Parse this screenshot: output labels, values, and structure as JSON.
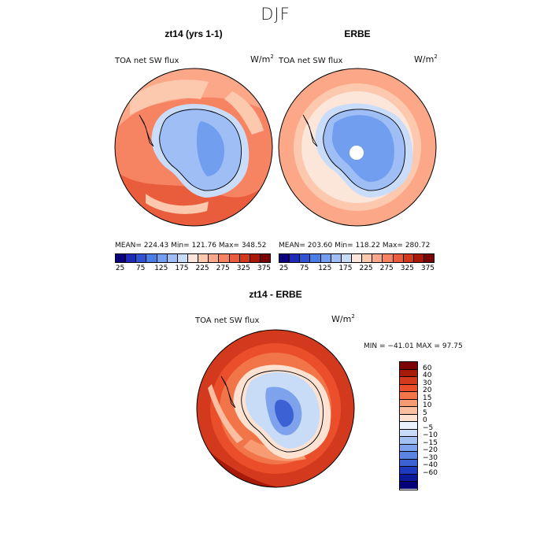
{
  "figure": {
    "title": "DJF"
  },
  "colors": {
    "abs_scale": [
      "#0a007f",
      "#1d2bb8",
      "#2f55d6",
      "#4b7de8",
      "#729ef0",
      "#9ebef5",
      "#c9dcfa",
      "#fce6d9",
      "#fcc9af",
      "#fba788",
      "#f68462",
      "#ea5d3c",
      "#d33a1d",
      "#a71a0a",
      "#7a0504"
    ],
    "diff_scale": [
      "#7a0504",
      "#a71a0a",
      "#d33a1d",
      "#ea4e2a",
      "#f27449",
      "#f79b73",
      "#fbbea0",
      "#fde2d2",
      "#eaf2fd",
      "#c8dcf7",
      "#a2c0f2",
      "#7ea2ec",
      "#5a83e2",
      "#3b61d5",
      "#1d39be",
      "#0a1a9a",
      "#05007a"
    ]
  },
  "chart_data": [
    {
      "type": "heatmap",
      "projection": "south-polar-stereographic",
      "title": "zt14 (yrs 1-1)",
      "variable": "TOA net SW flux",
      "units": "W/m",
      "units_exp": "2",
      "stats": {
        "mean": 224.43,
        "min": 121.76,
        "max": 348.52
      },
      "stats_labels": {
        "mean": "MEAN=",
        "min": "Min=",
        "max": "Max="
      },
      "colorbar": {
        "orientation": "horizontal",
        "levels": [
          25,
          75,
          125,
          175,
          225,
          275,
          325,
          375
        ]
      }
    },
    {
      "type": "heatmap",
      "projection": "south-polar-stereographic",
      "title": "ERBE",
      "variable": "TOA net SW flux",
      "units": "W/m",
      "units_exp": "2",
      "stats": {
        "mean": 203.6,
        "min": 118.22,
        "max": 280.72
      },
      "stats_labels": {
        "mean": "MEAN=",
        "min": "Min=",
        "max": "Max="
      },
      "colorbar": {
        "orientation": "horizontal",
        "levels": [
          25,
          75,
          125,
          175,
          225,
          275,
          325,
          375
        ]
      }
    },
    {
      "type": "heatmap",
      "projection": "south-polar-stereographic",
      "title": "zt14 - ERBE",
      "variable": "TOA net SW flux",
      "units": "W/m",
      "units_exp": "2",
      "stats_text": "MIN = −41.01 MAX =  97.75",
      "colorbar": {
        "orientation": "vertical",
        "levels": [
          "60",
          "40",
          "30",
          "20",
          "15",
          "10",
          "5",
          "0",
          "−5",
          "−10",
          "−15",
          "−20",
          "−30",
          "−40",
          "−60"
        ]
      }
    }
  ],
  "stats_text": {
    "left": "MEAN= 224.43   Min= 121.76   Max= 348.52",
    "right": "MEAN= 203.60   Min= 118.22   Max= 280.72"
  }
}
